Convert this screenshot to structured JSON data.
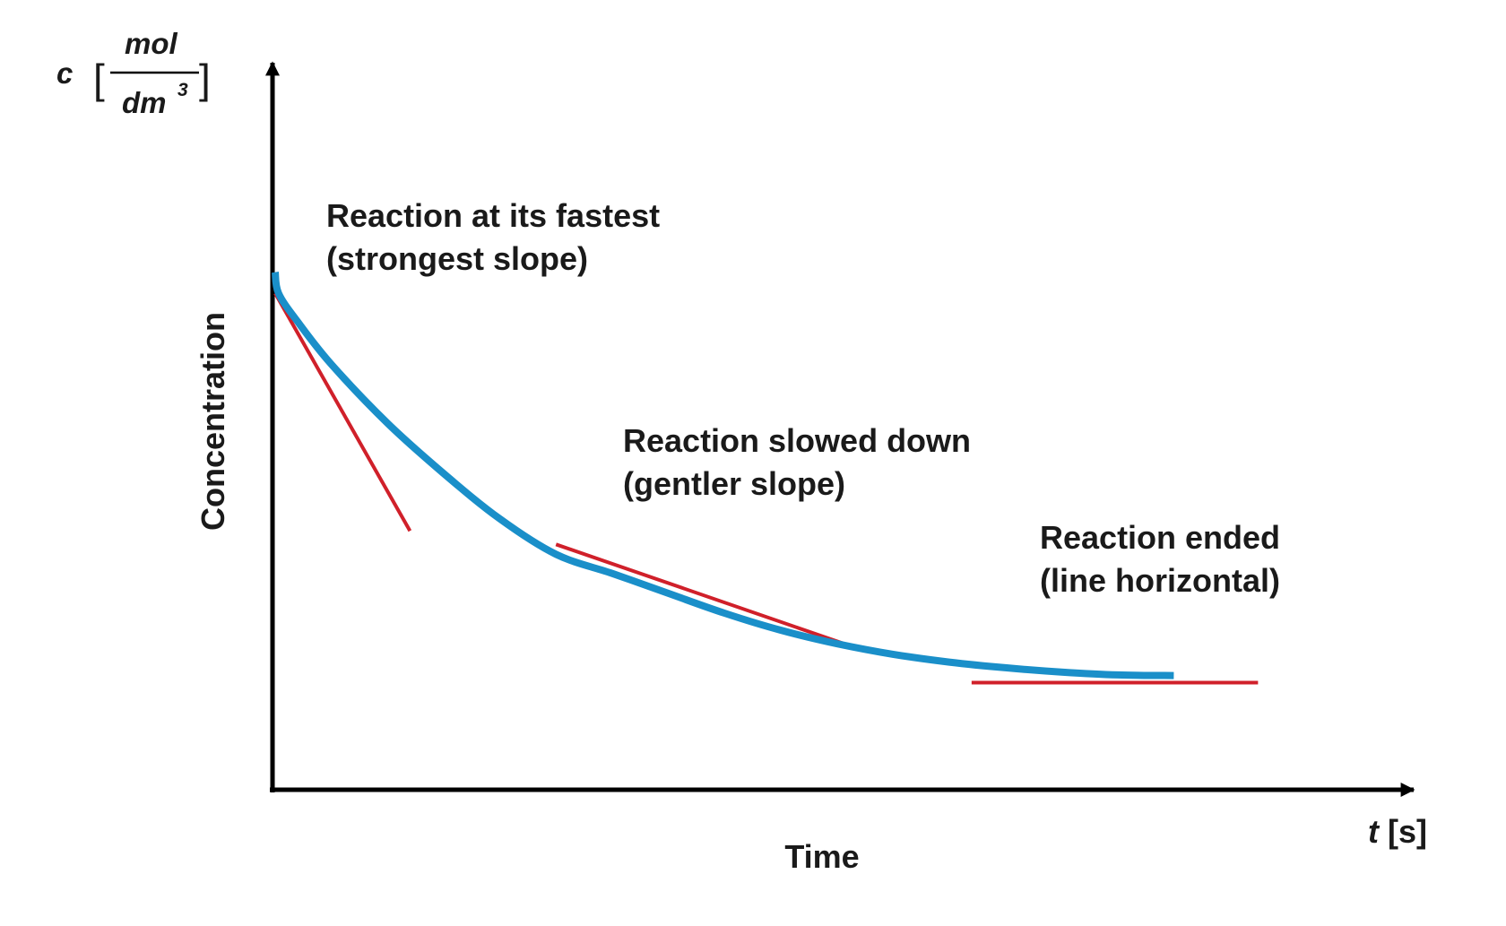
{
  "chart_data": {
    "type": "line",
    "title": "",
    "xlabel": "Time",
    "ylabel": "Concentration",
    "x_unit": {
      "symbol": "t",
      "unit": "[s]"
    },
    "y_unit": {
      "symbol": "c",
      "numerator": "mol",
      "denominator": "dm",
      "exponent": "3"
    },
    "xlim": [
      0,
      100
    ],
    "ylim": [
      0,
      100
    ],
    "ticks": false,
    "grid": false,
    "series": [
      {
        "color": "#1a8fc9",
        "x": [
          0,
          0.3,
          2,
          5,
          10,
          15,
          20,
          25,
          30,
          35,
          40,
          45,
          50,
          55,
          60,
          65,
          70,
          75,
          80
        ],
        "y": [
          73,
          70,
          66,
          60,
          51.7,
          44.6,
          38.2,
          33.2,
          30.5,
          27.7,
          24.9,
          22.5,
          20.6,
          19.1,
          18.0,
          17.2,
          16.6,
          16.2,
          16.1
        ]
      }
    ],
    "tangents": [
      {
        "color": "#d0202a",
        "x": [
          0,
          12
        ],
        "y": [
          70,
          36.5
        ]
      },
      {
        "color": "#d0202a",
        "x": [
          25,
          51
        ],
        "y": [
          34.6,
          20.4
        ]
      },
      {
        "color": "#d0202a",
        "x": [
          62,
          87.5
        ],
        "y": [
          15.1,
          15.1
        ]
      }
    ],
    "annotations": [
      {
        "lines": [
          "Reaction at its fastest",
          "(strongest slope)"
        ]
      },
      {
        "lines": [
          "Reaction slowed down",
          "(gentler slope)"
        ]
      },
      {
        "lines": [
          "Reaction ended",
          "(line horizontal)"
        ]
      }
    ]
  },
  "colors": {
    "axis": "#000000",
    "curve": "#1a8fc9",
    "tangent": "#d0202a",
    "text": "#1a1a1a"
  }
}
